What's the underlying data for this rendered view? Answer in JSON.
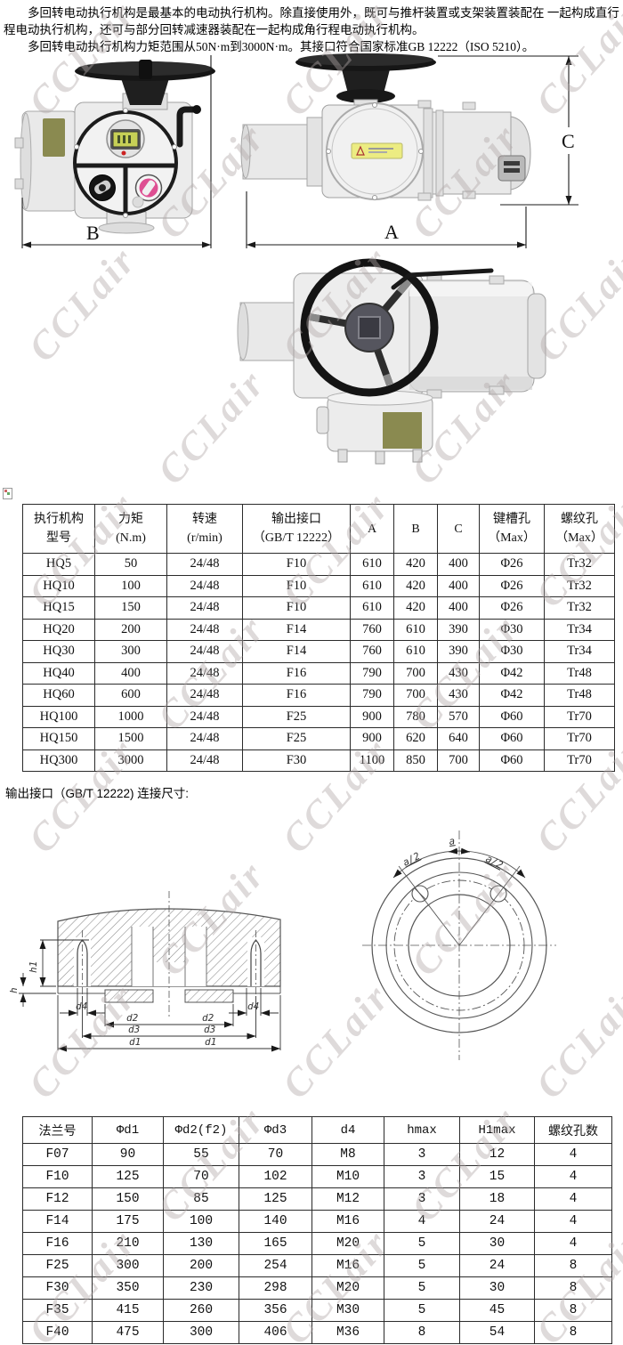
{
  "watermark": {
    "text": "CCLair"
  },
  "intro": {
    "para1": "多回转电动执行机构是最基本的电动执行机构。除直接使用外，既可与推杆装置或支架装置装配在 一起构成直行程电动执行机构，还可与部分回转减速器装配在一起构成角行程电动执行机构。",
    "para2": "多回转电动执行机构力矩范围从50N·m到3000N·m。其接口符合国家标准GB 12222（ISO 5210）。"
  },
  "figures": {
    "dim_a": "A",
    "dim_b": "B",
    "dim_c": "C"
  },
  "spec_table": {
    "headers": [
      [
        "执行机构",
        "型号"
      ],
      [
        "力矩",
        "(N.m)"
      ],
      [
        "转速",
        "(r/min)"
      ],
      [
        "输出接口",
        "（GB/T 12222）"
      ],
      [
        "A"
      ],
      [
        "B"
      ],
      [
        "C"
      ],
      [
        "键槽孔",
        "（Max）"
      ],
      [
        "螺纹孔",
        "（Max）"
      ]
    ],
    "rows": [
      [
        "HQ5",
        "50",
        "24/48",
        "F10",
        "610",
        "420",
        "400",
        "Φ26",
        "Tr32"
      ],
      [
        "HQ10",
        "100",
        "24/48",
        "F10",
        "610",
        "420",
        "400",
        "Φ26",
        "Tr32"
      ],
      [
        "HQ15",
        "150",
        "24/48",
        "F10",
        "610",
        "420",
        "400",
        "Φ26",
        "Tr32"
      ],
      [
        "HQ20",
        "200",
        "24/48",
        "F14",
        "760",
        "610",
        "390",
        "Φ30",
        "Tr34"
      ],
      [
        "HQ30",
        "300",
        "24/48",
        "F14",
        "760",
        "610",
        "390",
        "Φ30",
        "Tr34"
      ],
      [
        "HQ40",
        "400",
        "24/48",
        "F16",
        "790",
        "700",
        "430",
        "Φ42",
        "Tr48"
      ],
      [
        "HQ60",
        "600",
        "24/48",
        "F16",
        "790",
        "700",
        "430",
        "Φ42",
        "Tr48"
      ],
      [
        "HQ100",
        "1000",
        "24/48",
        "F25",
        "900",
        "780",
        "570",
        "Φ60",
        "Tr70"
      ],
      [
        "HQ150",
        "1500",
        "24/48",
        "F25",
        "900",
        "620",
        "640",
        "Φ60",
        "Tr70"
      ],
      [
        "HQ300",
        "3000",
        "24/48",
        "F30",
        "1100",
        "850",
        "700",
        "Φ60",
        "Tr70"
      ]
    ]
  },
  "section_label": "输出接口（GB/T 12222) 连接尺寸:",
  "drawings": {
    "left": {
      "h1": "h1",
      "h": "h",
      "d1": "d1",
      "d2": "d2",
      "d3": "d3",
      "d4": "d4"
    },
    "face": {
      "a": "a",
      "a_half": "a/2"
    }
  },
  "flange_table": {
    "headers": [
      "法兰号",
      "Φd1",
      "Φd2(f2)",
      "Φd3",
      "d4",
      "hmax",
      "H1max",
      "螺纹孔数"
    ],
    "rows": [
      [
        "F07",
        "90",
        "55",
        "70",
        "M8",
        "3",
        "12",
        "4"
      ],
      [
        "F10",
        "125",
        "70",
        "102",
        "M10",
        "3",
        "15",
        "4"
      ],
      [
        "F12",
        "150",
        "85",
        "125",
        "M12",
        "3",
        "18",
        "4"
      ],
      [
        "F14",
        "175",
        "100",
        "140",
        "M16",
        "4",
        "24",
        "4"
      ],
      [
        "F16",
        "210",
        "130",
        "165",
        "M20",
        "5",
        "30",
        "4"
      ],
      [
        "F25",
        "300",
        "200",
        "254",
        "M16",
        "5",
        "24",
        "8"
      ],
      [
        "F30",
        "350",
        "230",
        "298",
        "M20",
        "5",
        "30",
        "8"
      ],
      [
        "F35",
        "415",
        "260",
        "356",
        "M30",
        "5",
        "45",
        "8"
      ],
      [
        "F40",
        "475",
        "300",
        "406",
        "M36",
        "8",
        "54",
        "8"
      ]
    ]
  }
}
